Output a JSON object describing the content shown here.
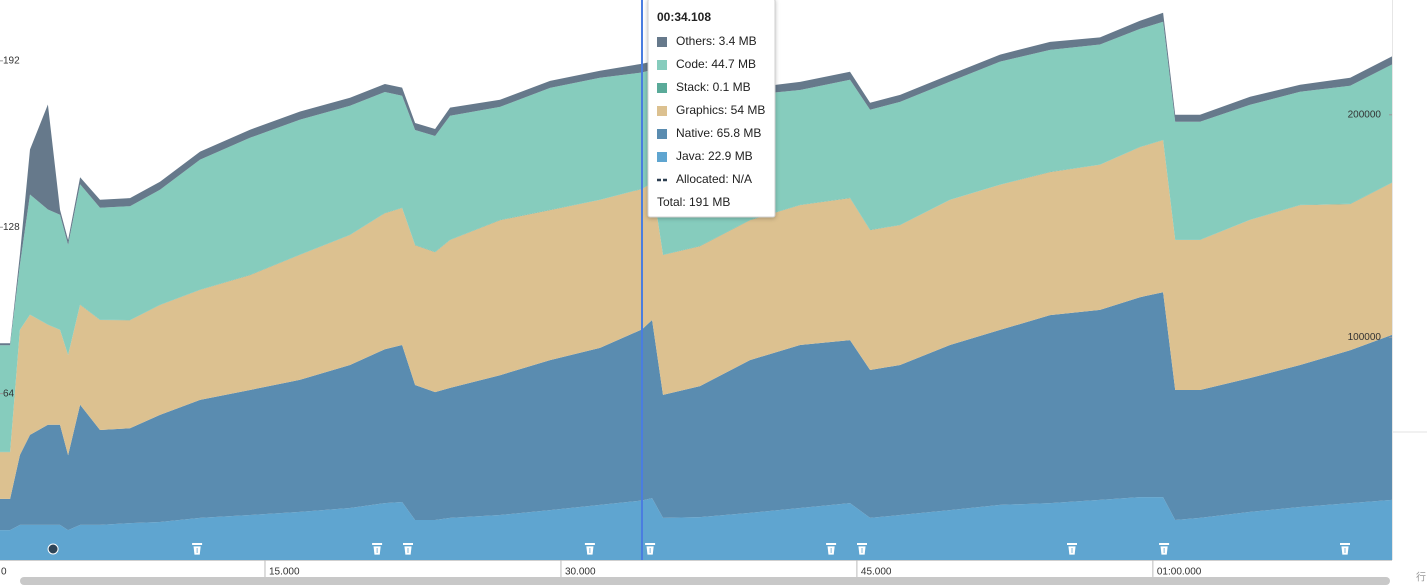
{
  "chart_data": {
    "type": "stacked-area",
    "x": [
      1.57,
      2.08,
      2.58,
      3.09,
      4.0,
      4.61,
      5.02,
      5.63,
      6.64,
      8.16,
      9.68,
      11.71,
      14.24,
      16.78,
      19.31,
      21.08,
      21.95,
      22.61,
      23.62,
      24.38,
      26.91,
      29.45,
      31.98,
      34.108,
      34.62,
      35.17,
      37.05,
      39.58,
      42.12,
      44.65,
      45.67,
      47.19,
      49.72,
      52.26,
      54.79,
      57.32,
      59.35,
      60.52,
      61.13,
      62.39,
      64.93,
      67.46,
      70.0,
      72.12
    ],
    "series": [
      {
        "name": "Java",
        "color": "#5fa5d0",
        "values": [
          11.5,
          11.5,
          13.5,
          13.5,
          13.5,
          13.5,
          11.5,
          13.5,
          13.5,
          14.2,
          14.6,
          16.2,
          17.3,
          18.5,
          20.0,
          21.9,
          22.3,
          15.4,
          15.4,
          16.2,
          17.3,
          19.2,
          21.2,
          22.9,
          23.8,
          16.2,
          16.5,
          18.1,
          20.0,
          21.9,
          16.2,
          17.3,
          19.2,
          21.2,
          21.9,
          23.1,
          24.2,
          24.2,
          15.4,
          16.2,
          18.5,
          20.4,
          21.9,
          23.1
        ]
      },
      {
        "name": "Native",
        "color": "#5a8cb0",
        "values": [
          12,
          12,
          26.9,
          34.6,
          38.5,
          38.5,
          28.8,
          46.2,
          36.5,
          36.5,
          41.2,
          45.4,
          48.1,
          50.8,
          55.0,
          59.2,
          60.4,
          51.9,
          49.2,
          50.0,
          53.8,
          57.7,
          60.4,
          65.8,
          68.5,
          47.3,
          50.4,
          58.8,
          62.7,
          62.7,
          56.9,
          57.7,
          63.5,
          67.3,
          72.3,
          73.1,
          76.9,
          78.8,
          50.0,
          49.2,
          51.5,
          54.6,
          58.8,
          63.5
        ]
      },
      {
        "name": "Graphics",
        "color": "#dcc190",
        "values": [
          18,
          18,
          48.1,
          46.2,
          38.5,
          36.5,
          38.5,
          38.5,
          42.3,
          41.5,
          42.3,
          42.3,
          44.2,
          48.1,
          50.0,
          52.3,
          52.7,
          53.8,
          53.8,
          56.9,
          59.6,
          57.7,
          56.9,
          54,
          52.7,
          53.8,
          53.8,
          53.8,
          53.8,
          54.6,
          53.8,
          53.8,
          55.8,
          55.8,
          55.0,
          55.8,
          57.7,
          58.5,
          57.7,
          57.7,
          60.8,
          61.5,
          56.2,
          58.5
        ]
      },
      {
        "name": "Stack",
        "color": "#5aaa99",
        "values": [
          0.1,
          0.1,
          0.1,
          0.1,
          0.1,
          0.1,
          0.1,
          0.1,
          0.1,
          0.1,
          0.1,
          0.1,
          0.1,
          0.1,
          0.1,
          0.1,
          0.1,
          0.1,
          0.1,
          0.1,
          0.1,
          0.1,
          0.1,
          0.1,
          0.1,
          0.1,
          0.1,
          0.1,
          0.1,
          0.1,
          0.1,
          0.1,
          0.1,
          0.1,
          0.1,
          0.1,
          0.1,
          0.1,
          0.1,
          0.1,
          0.1,
          0.1,
          0.1,
          0.1
        ]
      },
      {
        "name": "Code",
        "color": "#86ccbd",
        "values": [
          41,
          41,
          25.0,
          46.2,
          44.2,
          44.2,
          42.3,
          46.2,
          43.1,
          43.8,
          44.2,
          50.0,
          52.7,
          51.9,
          49.6,
          46.5,
          43.1,
          44.2,
          44.6,
          47.7,
          43.5,
          46.9,
          46.9,
          44.7,
          43.5,
          57.7,
          55.8,
          48.1,
          44.2,
          45.4,
          46.2,
          47.3,
          45.4,
          47.3,
          46.9,
          46.2,
          45.4,
          45.4,
          45.4,
          45.4,
          44.2,
          43.5,
          45.4,
          45.4
        ]
      },
      {
        "name": "Others",
        "color": "#66798b",
        "values": [
          0.8,
          0.8,
          3.8,
          17.3,
          40.4,
          1.9,
          1.9,
          2.7,
          3.1,
          3.1,
          3.1,
          3.1,
          3.1,
          3.1,
          3.1,
          3.1,
          3.1,
          2.7,
          2.7,
          3.1,
          2.7,
          2.7,
          2.7,
          3.4,
          3.1,
          3.1,
          3.1,
          2.7,
          3.1,
          3.1,
          2.7,
          2.7,
          2.7,
          2.7,
          3.1,
          2.7,
          3.1,
          3.5,
          2.7,
          2.7,
          3.1,
          2.7,
          3.1,
          3.1
        ]
      }
    ],
    "xlim": [
      1.57,
      72.12
    ],
    "xticks": [
      0,
      {
        "value": 15,
        "label": "15.000"
      },
      {
        "value": 30,
        "label": "30.000"
      },
      {
        "value": 45,
        "label": "45.000"
      },
      {
        "value": 60,
        "label": "01:00.000"
      }
    ],
    "ylim": [
      0,
      215.4
    ],
    "yticks": [
      64,
      128,
      192
    ],
    "y2lim": [
      0,
      251570
    ],
    "y2ticks": [
      100000,
      200000
    ],
    "gc_events": [
      11.56,
      20.68,
      22.25,
      31.47,
      34.52,
      43.69,
      45.26,
      55.9,
      60.57,
      69.74
    ],
    "other_events": [
      4.26
    ],
    "cursor_color": "#4a7de0"
  },
  "tooltip": {
    "time": "00:34.108",
    "items": [
      {
        "label": "Others: 3.4 MB",
        "color": "#66798b"
      },
      {
        "label": "Code: 44.7 MB",
        "color": "#86ccbd"
      },
      {
        "label": "Stack: 0.1 MB",
        "color": "#5aaa99"
      },
      {
        "label": "Graphics: 54 MB",
        "color": "#dcc190"
      },
      {
        "label": "Native: 65.8 MB",
        "color": "#5a8cb0"
      },
      {
        "label": "Java: 22.9 MB",
        "color": "#5fa5d0"
      },
      {
        "label": "Allocated: N/A",
        "color": "#2c3e50",
        "style": "dashed"
      },
      {
        "label": "Total: 191 MB"
      }
    ]
  },
  "corner_text": "行"
}
